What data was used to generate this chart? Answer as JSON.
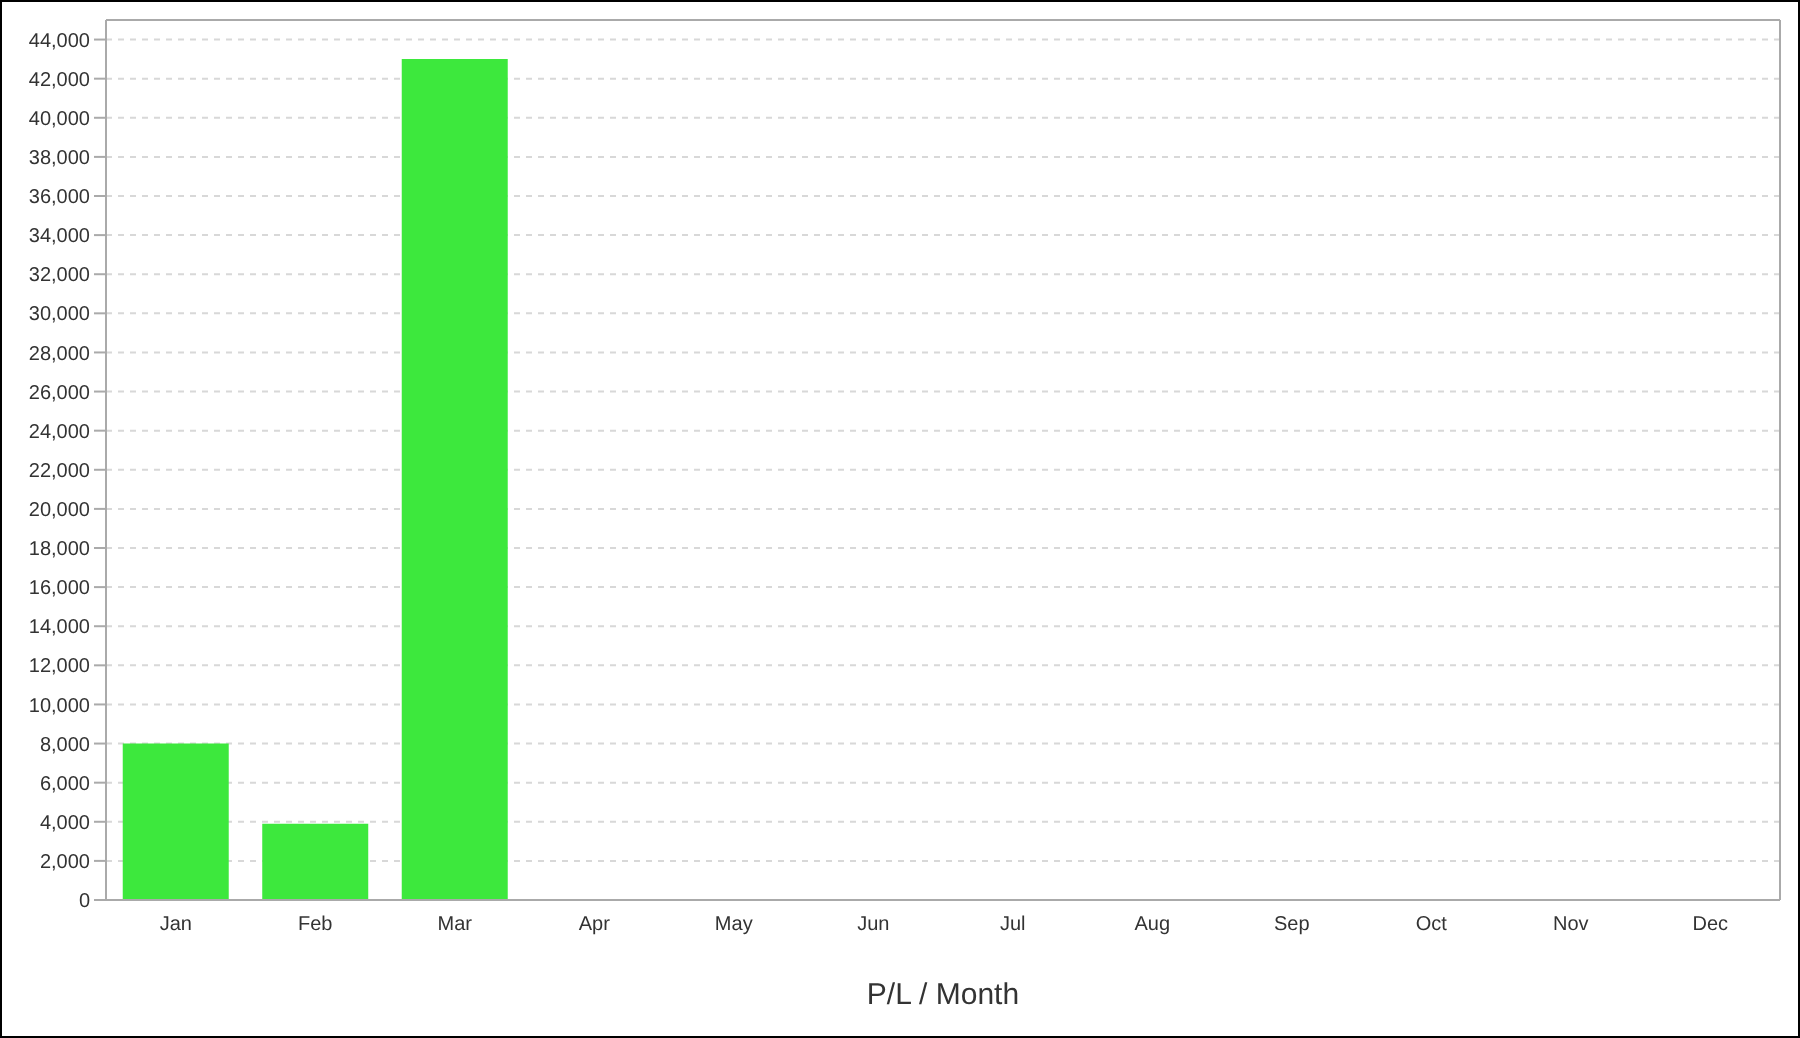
{
  "chart_data": {
    "type": "bar",
    "xlabel": "P/L / Month",
    "categories": [
      "Jan",
      "Feb",
      "Mar",
      "Apr",
      "May",
      "Jun",
      "Jul",
      "Aug",
      "Sep",
      "Oct",
      "Nov",
      "Dec"
    ],
    "values": [
      8000,
      3900,
      43000,
      null,
      null,
      null,
      null,
      null,
      null,
      null,
      null,
      null
    ],
    "color": "#3de83d",
    "ylim": [
      0,
      45000
    ],
    "yticks": [
      0,
      {
        "value": 2000,
        "label": "2,000"
      },
      {
        "value": 4000,
        "label": "4,000"
      },
      {
        "value": 6000,
        "label": "6,000"
      },
      {
        "value": 8000,
        "label": "8,000"
      },
      {
        "value": 10000,
        "label": "10,000"
      },
      {
        "value": 12000,
        "label": "12,000"
      },
      {
        "value": 14000,
        "label": "14,000"
      },
      {
        "value": 16000,
        "label": "16,000"
      },
      {
        "value": 18000,
        "label": "18,000"
      },
      {
        "value": 20000,
        "label": "20,000"
      },
      {
        "value": 22000,
        "label": "22,000"
      },
      {
        "value": 24000,
        "label": "24,000"
      },
      {
        "value": 26000,
        "label": "26,000"
      },
      {
        "value": 28000,
        "label": "28,000"
      },
      {
        "value": 30000,
        "label": "30,000"
      },
      {
        "value": 32000,
        "label": "32,000"
      },
      {
        "value": 34000,
        "label": "34,000"
      },
      {
        "value": 36000,
        "label": "36,000"
      },
      {
        "value": 38000,
        "label": "38,000"
      },
      {
        "value": 40000,
        "label": "40,000"
      },
      {
        "value": 42000,
        "label": "42,000"
      },
      {
        "value": 44000,
        "label": "44,000"
      }
    ],
    "grid": "y"
  }
}
